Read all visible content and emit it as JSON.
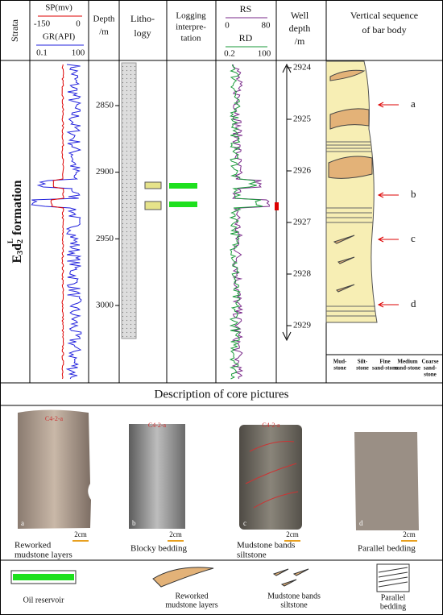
{
  "header": {
    "strata": "Strata",
    "sp": "SP(mv)",
    "sp_min": "-150",
    "sp_max": "0",
    "gr": "GR(API)",
    "gr_min": "0.1",
    "gr_max": "100",
    "depth": [
      "Depth",
      "/m"
    ],
    "lithology": [
      "Litho-",
      "logy"
    ],
    "interp": [
      "Logging",
      "interpre-",
      "tation"
    ],
    "rs": "RS",
    "rs_min": "0",
    "rs_max": "80",
    "rd": "RD",
    "rd_min": "0.2",
    "rd_max": "100",
    "well_depth": [
      "Well",
      "depth",
      "/m"
    ],
    "sequence": [
      "Vertical sequence",
      "of bar body"
    ]
  },
  "formation": {
    "main": "E",
    "sub1": "3",
    "mid": "d",
    "sub2": "2",
    "sup": "L",
    "word": "formation"
  },
  "depth_ticks": [
    2850,
    2900,
    2950,
    3000
  ],
  "well_depth_ticks": [
    2924,
    2925,
    2926,
    2927,
    2928,
    2929
  ],
  "sequence_markers": [
    "a",
    "b",
    "c",
    "d"
  ],
  "grain_sizes": [
    [
      "Mud-",
      "stone"
    ],
    [
      "Silt-",
      "stone"
    ],
    [
      "Fine",
      "sand-stone"
    ],
    [
      "Medium",
      "sand-stone"
    ],
    [
      "Coarse",
      "sand-",
      "stone"
    ]
  ],
  "core_section": {
    "title": "Description of core pictures",
    "pictures": [
      {
        "letter": "a",
        "tag": "C4-2-a",
        "scale": "2cm",
        "caption": [
          "Reworked",
          "mudstone layers"
        ]
      },
      {
        "letter": "b",
        "tag": "C4-2-a",
        "scale": "2cm",
        "caption": [
          "Blocky bedding"
        ]
      },
      {
        "letter": "c",
        "tag": "C4-2-a",
        "scale": "2cm",
        "caption": [
          "Mudstone bands",
          "siltstone"
        ]
      },
      {
        "letter": "d",
        "scale": "2cm",
        "caption": [
          "Parallel bedding"
        ]
      }
    ]
  },
  "legend": [
    {
      "label": [
        "Oil reservoir"
      ]
    },
    {
      "label": [
        "Reworked",
        "mudstone layers"
      ]
    },
    {
      "label": [
        "Mudstone bands",
        "siltstone"
      ]
    },
    {
      "label": [
        "Parallel",
        "bedding"
      ]
    }
  ]
}
